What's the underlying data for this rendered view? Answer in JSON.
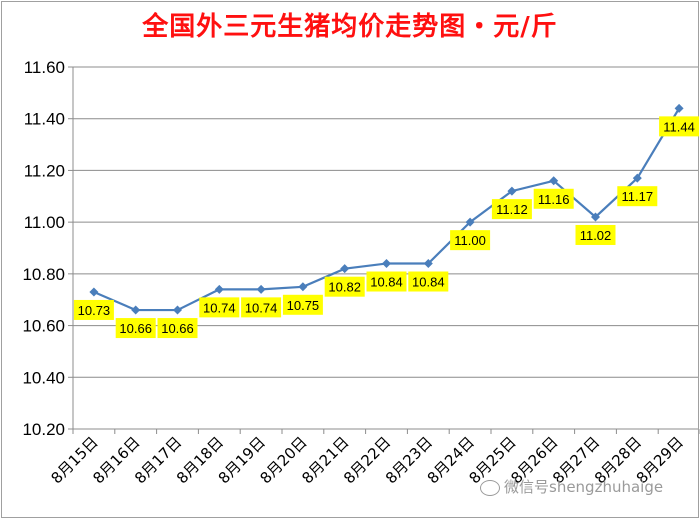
{
  "chart_data": {
    "type": "line",
    "title": "全国外三元生猪均价走势图・元/斤",
    "categories": [
      "8月15日",
      "8月16日",
      "8月17日",
      "8月18日",
      "8月19日",
      "8月20日",
      "8月21日",
      "8月22日",
      "8月23日",
      "8月24日",
      "8月25日",
      "8月26日",
      "8月27日",
      "8月28日",
      "8月29日"
    ],
    "values": [
      10.73,
      10.66,
      10.66,
      10.74,
      10.74,
      10.75,
      10.82,
      10.84,
      10.84,
      11.0,
      11.12,
      11.16,
      11.02,
      11.17,
      11.44
    ],
    "value_labels": [
      "10.73",
      "10.66",
      "10.66",
      "10.74",
      "10.74",
      "10.75",
      "10.82",
      "10.84",
      "10.84",
      "11.00",
      "11.12",
      "11.16",
      "11.02",
      "11.17",
      "11.44"
    ],
    "yticks": [
      "10.20",
      "10.40",
      "10.60",
      "10.80",
      "11.00",
      "11.20",
      "11.40",
      "11.60"
    ],
    "ylim": [
      10.2,
      11.6
    ],
    "xlabel": "",
    "ylabel": "",
    "grid": true,
    "line_color": "#4a7ebb",
    "label_bg_color": "#ffff00"
  },
  "watermark": "微信号shengzhuhaige"
}
